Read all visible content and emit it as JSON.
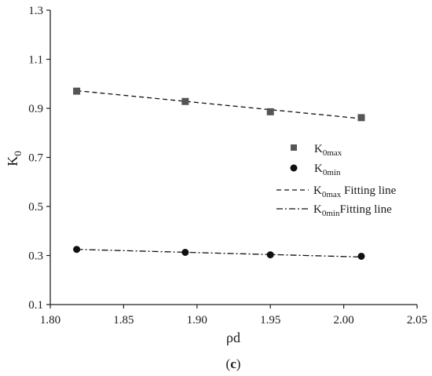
{
  "chart_data": {
    "type": "scatter",
    "xlabel": "ρd",
    "ylabel": "K0",
    "ylabel_main": "K",
    "ylabel_sub": "0",
    "xlim": [
      1.8,
      2.05
    ],
    "ylim": [
      0.1,
      1.3
    ],
    "xticks": [
      1.8,
      1.85,
      1.9,
      1.95,
      2.0,
      2.05
    ],
    "xtick_labels": [
      "1.80",
      "1.85",
      "1.90",
      "1.95",
      "2.00",
      "2.05"
    ],
    "yticks": [
      0.1,
      0.3,
      0.5,
      0.7,
      0.9,
      1.1,
      1.3
    ],
    "ytick_labels": [
      "0.1",
      "0.3",
      "0.5",
      "0.7",
      "0.9",
      "1.1",
      "1.3"
    ],
    "grid": false,
    "legend_position": "right",
    "series": [
      {
        "name": "K0max",
        "label_main": "K",
        "label_sub": "0max",
        "marker": "square",
        "color": "#555555",
        "x": [
          1.818,
          1.892,
          1.95,
          2.012
        ],
        "y": [
          0.97,
          0.928,
          0.886,
          0.862
        ]
      },
      {
        "name": "K0min",
        "label_main": "K",
        "label_sub": "0min",
        "marker": "circle",
        "color": "#111111",
        "x": [
          1.818,
          1.892,
          1.95,
          2.012
        ],
        "y": [
          0.325,
          0.313,
          0.303,
          0.297
        ]
      }
    ],
    "fit_lines": [
      {
        "name": "K0max Fitting line",
        "label_main": "K",
        "label_sub": "0max",
        "label_rest": " Fitting line",
        "style": "dashed",
        "x": [
          1.818,
          2.012
        ],
        "y": [
          0.972,
          0.858
        ]
      },
      {
        "name": "K0minFitting line",
        "label_main": "K",
        "label_sub": "0min",
        "label_rest": "Fitting line",
        "style": "dashdot",
        "x": [
          1.818,
          2.012
        ],
        "y": [
          0.325,
          0.294
        ]
      }
    ],
    "panel_label": {
      "open": "(",
      "letter": "c",
      "close": ")"
    }
  }
}
